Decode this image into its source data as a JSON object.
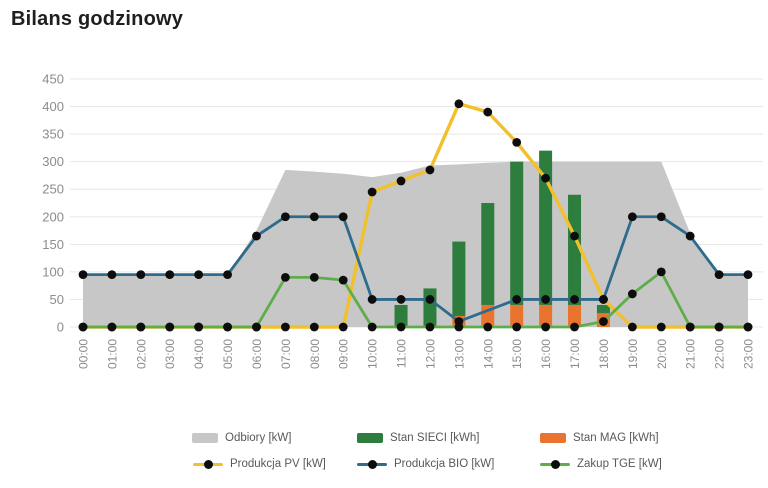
{
  "title": "Bilans godzinowy",
  "chart_data": {
    "type": "combo",
    "title": "Bilans godzinowy",
    "categories": [
      "00:00",
      "01:00",
      "02:00",
      "03:00",
      "04:00",
      "05:00",
      "06:00",
      "07:00",
      "08:00",
      "09:00",
      "10:00",
      "11:00",
      "12:00",
      "13:00",
      "14:00",
      "15:00",
      "16:00",
      "17:00",
      "18:00",
      "19:00",
      "20:00",
      "21:00",
      "22:00",
      "23:00"
    ],
    "y_axis": {
      "min": 0,
      "max": 450,
      "step": 50
    },
    "grid": true,
    "legend_position": "bottom",
    "colors": {
      "background": "#ffffff",
      "gridline": "#e7e7e7",
      "axis_label": "#8c8c8c",
      "marker_dot": "#0d0d0d",
      "legend_text": "#595959",
      "title_text": "#1f1f1f"
    },
    "series": [
      {
        "name": "Odbiory [kW]",
        "type": "area",
        "color": "#c7c7c7",
        "values": [
          95,
          95,
          95,
          95,
          95,
          95,
          175,
          285,
          282,
          278,
          272,
          280,
          293,
          295,
          298,
          300,
          300,
          300,
          300,
          300,
          300,
          170,
          95,
          95
        ]
      },
      {
        "name": "Stan SIECI [kWh]",
        "type": "bar",
        "stack": "state",
        "stack_index": 1,
        "color": "#2d7d3e",
        "values": [
          0,
          0,
          0,
          0,
          0,
          0,
          0,
          0,
          0,
          0,
          0,
          40,
          70,
          135,
          185,
          260,
          280,
          200,
          15,
          0,
          0,
          0,
          0,
          0
        ]
      },
      {
        "name": "Stan MAG [kWh]",
        "type": "bar",
        "stack": "state",
        "stack_index": 0,
        "color": "#e8742f",
        "values": [
          0,
          0,
          0,
          0,
          0,
          0,
          0,
          0,
          0,
          0,
          0,
          0,
          0,
          20,
          40,
          40,
          40,
          40,
          25,
          0,
          0,
          0,
          0,
          0
        ]
      },
      {
        "name": "Produkcja PV [kW]",
        "type": "line",
        "color": "#f2c02b",
        "line_width": 3.4,
        "values": [
          0,
          0,
          0,
          0,
          0,
          0,
          0,
          0,
          0,
          0,
          245,
          265,
          285,
          405,
          390,
          335,
          270,
          165,
          50,
          0,
          0,
          0,
          0,
          0
        ]
      },
      {
        "name": "Produkcja BIO [kW]",
        "type": "line",
        "color": "#2e6b8d",
        "line_width": 2.8,
        "values": [
          95,
          95,
          95,
          95,
          95,
          95,
          165,
          200,
          200,
          200,
          50,
          50,
          50,
          10,
          null,
          50,
          50,
          50,
          50,
          200,
          200,
          165,
          95,
          95
        ]
      },
      {
        "name": "Zakup TGE [kW]",
        "type": "line",
        "color": "#5fad4a",
        "line_width": 2.8,
        "values": [
          0,
          0,
          0,
          0,
          0,
          0,
          0,
          90,
          90,
          85,
          0,
          0,
          0,
          0,
          0,
          0,
          0,
          0,
          10,
          60,
          100,
          0,
          0,
          0
        ]
      }
    ]
  }
}
